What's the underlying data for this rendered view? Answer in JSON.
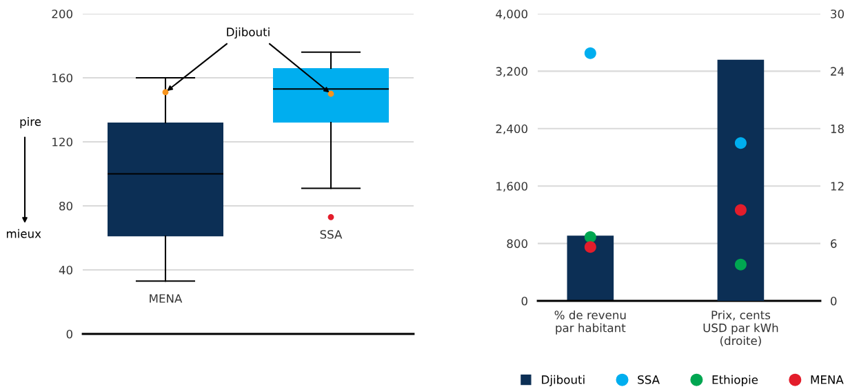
{
  "chart_data": [
    {
      "type": "box",
      "categories": [
        "MENA",
        "SSA"
      ],
      "colors": [
        "#0c2f55",
        "#00aeef"
      ],
      "ylim": [
        0,
        200
      ],
      "yticks": [
        0,
        40,
        80,
        120,
        160,
        200
      ],
      "grid": "y",
      "tick_labels": "y",
      "boxes": [
        {
          "low": 33,
          "q1": 61,
          "median": 100,
          "q3": 132,
          "high": 160
        },
        {
          "low": 91,
          "q1": 132,
          "median": 153,
          "q3": 166,
          "high": 176
        }
      ],
      "series": [
        {
          "type": "scatter",
          "color": "#f7941d",
          "x": [
            "MENA",
            "SSA"
          ],
          "values": [
            151,
            150
          ]
        },
        {
          "type": "scatter",
          "color": "#e31d2b",
          "x": [
            "SSA"
          ],
          "values": [
            73
          ]
        }
      ],
      "annotations": [
        "Djibouti",
        "pire",
        "mieux"
      ]
    },
    {
      "type": "bar",
      "categories": [
        "% de revenu\npar habitant",
        "Prix, cents\nUSD par kWh\n(droite)"
      ],
      "ylim": [
        0,
        4000
      ],
      "yticks": [
        0,
        {
          "value": 800,
          "label": "800"
        },
        {
          "value": 1600,
          "label": "1,600"
        },
        {
          "value": 2400,
          "label": "2,400"
        },
        {
          "value": 3200,
          "label": "3,200"
        },
        {
          "value": 4000,
          "label": "4,000"
        }
      ],
      "y2lim": [
        0,
        30
      ],
      "y2ticks": [
        0,
        6,
        12,
        18,
        24,
        30
      ],
      "grid": "y",
      "legend": "bottom",
      "series": [
        {
          "name": "Djibouti",
          "type": "bar",
          "color": "#0c2f55",
          "values": [
            910,
            null
          ]
        },
        {
          "type": "bar",
          "axis": "y2",
          "color": "#0c2f55",
          "values": [
            null,
            25.2
          ]
        },
        {
          "name": "SSA",
          "type": "scatter",
          "color": "#00aeef",
          "values": [
            3450,
            null
          ]
        },
        {
          "type": "scatter",
          "axis": "y2",
          "color": "#00aeef",
          "values": [
            null,
            16.5
          ]
        },
        {
          "name": "Ethiopie",
          "type": "scatter",
          "color": "#00a651",
          "values": [
            890,
            null
          ]
        },
        {
          "type": "scatter",
          "axis": "y2",
          "color": "#00a651",
          "values": [
            null,
            3.8
          ]
        },
        {
          "name": "MENA",
          "type": "scatter",
          "color": "#e31d2b",
          "values": [
            750,
            null
          ]
        },
        {
          "type": "scatter",
          "axis": "y2",
          "color": "#e31d2b",
          "values": [
            null,
            9.5
          ]
        }
      ]
    }
  ]
}
